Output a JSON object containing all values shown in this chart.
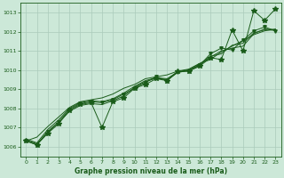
{
  "title": "Graphe pression niveau de la mer (hPa)",
  "xlim": [
    -0.5,
    23.5
  ],
  "ylim": [
    1005.5,
    1013.5
  ],
  "yticks": [
    1006,
    1007,
    1008,
    1009,
    1010,
    1011,
    1012,
    1013
  ],
  "xticks": [
    0,
    1,
    2,
    3,
    4,
    5,
    6,
    7,
    8,
    9,
    10,
    11,
    12,
    13,
    14,
    15,
    16,
    17,
    18,
    19,
    20,
    21,
    22,
    23
  ],
  "bg_color": "#cce8d8",
  "grid_color": "#aacbbb",
  "line_color": "#1a5c1a",
  "series1": [
    1006.3,
    1006.1,
    1006.7,
    1007.2,
    1007.9,
    1008.2,
    1008.3,
    1007.0,
    1008.35,
    1008.55,
    1009.05,
    1009.25,
    1009.55,
    1009.45,
    1009.95,
    1009.95,
    1010.2,
    1010.65,
    1010.55,
    1012.1,
    1011.0,
    1013.1,
    1012.6,
    1013.2
  ],
  "series2": [
    1006.3,
    1006.1,
    1006.8,
    1007.3,
    1007.95,
    1008.25,
    1008.35,
    1008.3,
    1008.45,
    1008.75,
    1009.05,
    1009.35,
    1009.65,
    1009.45,
    1009.9,
    1009.95,
    1010.25,
    1010.85,
    1011.15,
    1011.05,
    1011.55,
    1012.05,
    1012.25,
    1012.05
  ],
  "series3": [
    1006.3,
    1006.5,
    1007.05,
    1007.55,
    1008.05,
    1008.35,
    1008.45,
    1008.55,
    1008.75,
    1009.05,
    1009.25,
    1009.55,
    1009.65,
    1009.75,
    1009.95,
    1010.05,
    1010.35,
    1010.55,
    1010.95,
    1011.25,
    1011.55,
    1011.85,
    1012.05,
    1012.15
  ],
  "series4": [
    1006.35,
    1006.15,
    1006.75,
    1007.25,
    1007.85,
    1008.15,
    1008.25,
    1008.2,
    1008.4,
    1008.65,
    1009.1,
    1009.4,
    1009.58,
    1009.5,
    1009.88,
    1009.98,
    1010.28,
    1010.68,
    1011.0,
    1011.15,
    1011.25,
    1011.9,
    1012.15,
    1012.1
  ],
  "series5": [
    1006.4,
    1006.2,
    1006.9,
    1007.4,
    1008.0,
    1008.3,
    1008.4,
    1008.35,
    1008.5,
    1008.8,
    1009.15,
    1009.45,
    1009.6,
    1009.55,
    1009.92,
    1010.02,
    1010.32,
    1010.72,
    1010.85,
    1011.3,
    1011.4,
    1011.95,
    1012.1,
    1012.08
  ]
}
